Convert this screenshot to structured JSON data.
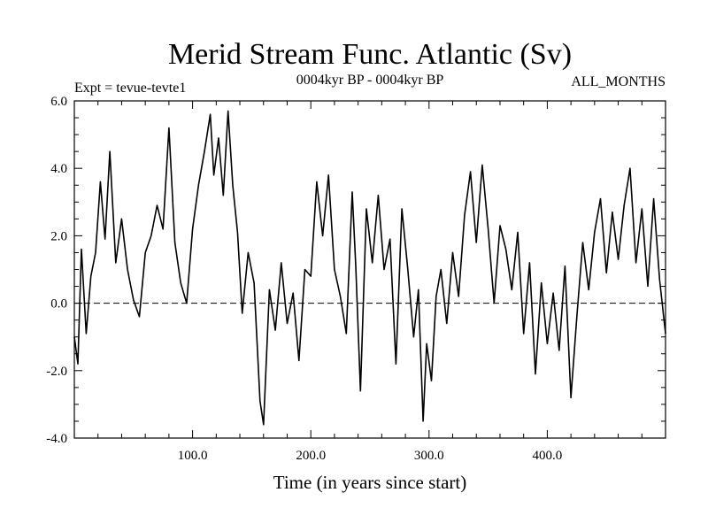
{
  "chart_data": {
    "type": "line",
    "title": "Merid Stream Func. Atlantic (Sv)",
    "subtitle": "0004kyr BP - 0004kyr BP",
    "left_label": "Expt = tevue-tevte1",
    "right_label": "ALL_MONTHS",
    "xlabel": "Time (in years since start)",
    "ylabel": "",
    "xlim": [
      0,
      500
    ],
    "ylim": [
      -4,
      6
    ],
    "xticks": [
      100,
      200,
      300,
      400
    ],
    "xtick_labels": [
      "100.0",
      "200.0",
      "300.0",
      "400.0"
    ],
    "yticks": [
      -4,
      -2,
      0,
      2,
      4,
      6
    ],
    "ytick_labels": [
      "-4.0",
      "-2.0",
      "0.0",
      "2.0",
      "4.0",
      "6.0"
    ],
    "reference_line": {
      "y": 0,
      "style": "dashed"
    },
    "series": [
      {
        "name": "Merid Stream Func. Atlantic",
        "color": "#000000",
        "x": [
          0,
          3,
          6,
          10,
          14,
          18,
          22,
          26,
          30,
          35,
          40,
          45,
          50,
          55,
          60,
          65,
          70,
          75,
          80,
          85,
          90,
          95,
          100,
          105,
          110,
          115,
          118,
          122,
          126,
          130,
          134,
          138,
          142,
          147,
          152,
          157,
          160,
          165,
          170,
          175,
          180,
          185,
          190,
          195,
          200,
          205,
          210,
          215,
          220,
          225,
          230,
          235,
          238,
          242,
          247,
          252,
          257,
          262,
          267,
          272,
          277,
          282,
          287,
          291,
          295,
          298,
          302,
          306,
          310,
          315,
          320,
          325,
          330,
          335,
          340,
          345,
          350,
          355,
          360,
          365,
          370,
          375,
          380,
          385,
          390,
          395,
          400,
          405,
          410,
          415,
          420,
          425,
          430,
          435,
          440,
          445,
          450,
          455,
          460,
          465,
          470,
          475,
          480,
          485,
          490,
          495,
          500
        ],
        "y": [
          -1.0,
          -1.8,
          1.6,
          -0.9,
          0.8,
          1.5,
          3.6,
          1.9,
          4.5,
          1.2,
          2.5,
          1.0,
          0.1,
          -0.4,
          1.5,
          2.0,
          2.9,
          2.2,
          5.2,
          1.8,
          0.6,
          0.0,
          2.2,
          3.5,
          4.5,
          5.6,
          3.8,
          4.9,
          3.2,
          5.7,
          3.5,
          2.1,
          -0.3,
          1.5,
          0.6,
          -2.9,
          -3.6,
          0.4,
          -0.8,
          1.2,
          -0.6,
          0.3,
          -1.7,
          1.0,
          0.8,
          3.6,
          2.0,
          3.8,
          1.0,
          0.2,
          -0.9,
          3.3,
          1.1,
          -2.6,
          2.8,
          1.2,
          3.2,
          1.0,
          1.9,
          -1.8,
          2.8,
          1.0,
          -1.0,
          0.4,
          -3.5,
          -1.2,
          -2.3,
          0.2,
          1.0,
          -0.6,
          1.5,
          0.2,
          2.6,
          3.9,
          1.8,
          4.1,
          2.2,
          0.0,
          2.3,
          1.6,
          0.4,
          2.1,
          -0.9,
          1.2,
          -2.1,
          0.6,
          -1.2,
          0.3,
          -1.4,
          1.1,
          -2.8,
          -0.4,
          1.8,
          0.4,
          2.1,
          3.1,
          0.9,
          2.7,
          1.3,
          2.9,
          4.0,
          1.2,
          2.8,
          0.5,
          3.1,
          0.7,
          -0.9
        ]
      }
    ]
  }
}
